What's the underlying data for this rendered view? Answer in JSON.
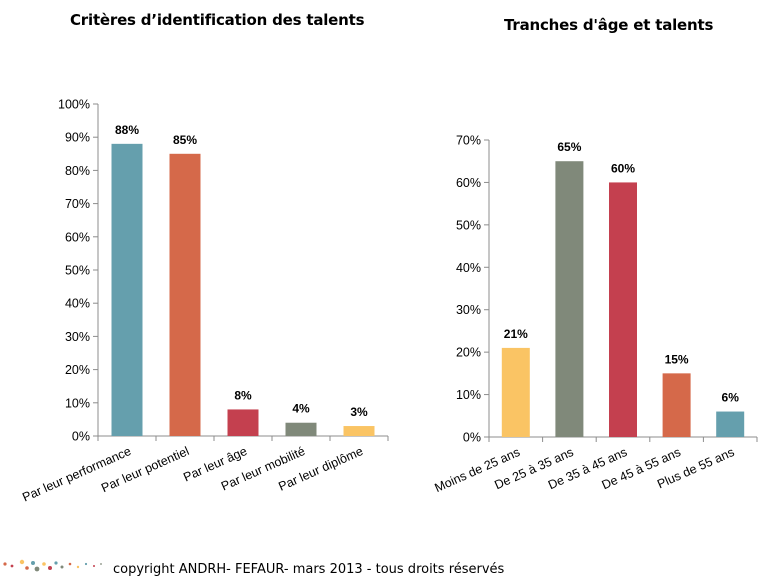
{
  "chart_data": [
    {
      "type": "bar",
      "title": "Critères d’identification des talents",
      "categories": [
        "Par leur performance",
        "Par leur potentiel",
        "Par leur âge",
        "Par leur mobilité",
        "Par leur diplôme"
      ],
      "values": [
        88,
        85,
        8,
        4,
        3
      ],
      "data_labels": [
        "88%",
        "85%",
        "8%",
        "4%",
        "3%"
      ],
      "colors": [
        "#659fad",
        "#d5694a",
        "#c4404f",
        "#80897a",
        "#fac464"
      ],
      "ylim": [
        0,
        100
      ],
      "ytick_labels": [
        "0%",
        "10%",
        "20%",
        "30%",
        "40%",
        "50%",
        "60%",
        "70%",
        "80%",
        "90%",
        "100%"
      ],
      "xlabel": "",
      "ylabel": "",
      "grid": false,
      "legend": "none"
    },
    {
      "type": "bar",
      "title": "Tranches d'âge et talents",
      "categories": [
        "Moins de 25 ans",
        "De 25 à 35 ans",
        "De 35 à 45 ans",
        "De 45 à 55 ans",
        "Plus de 55 ans"
      ],
      "values": [
        21,
        65,
        60,
        15,
        6
      ],
      "data_labels": [
        "21%",
        "65%",
        "60%",
        "15%",
        "6%"
      ],
      "colors": [
        "#fac464",
        "#80897a",
        "#c4404f",
        "#d5694a",
        "#659fad"
      ],
      "ylim": [
        0,
        70
      ],
      "ytick_labels": [
        "0%",
        "10%",
        "20%",
        "30%",
        "40%",
        "50%",
        "60%",
        "70%"
      ],
      "xlabel": "",
      "ylabel": "",
      "grid": false,
      "legend": "none"
    }
  ],
  "footer": {
    "copyright": "copyright  ANDRH- FEFAUR- mars 2013 - tous droits réservés"
  }
}
